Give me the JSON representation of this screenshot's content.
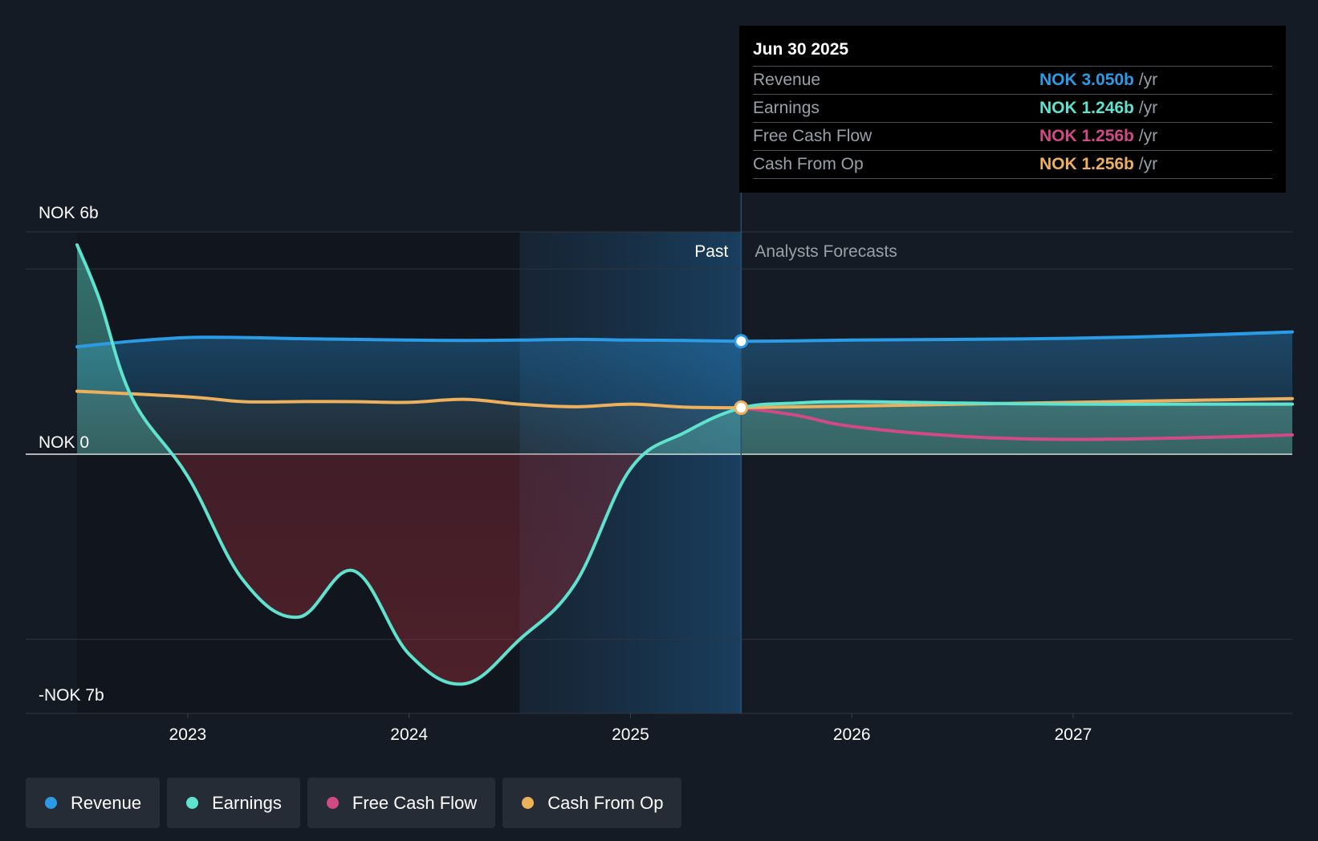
{
  "chart_data": {
    "type": "line",
    "currency": "NOK",
    "x_ticks": [
      {
        "label": "2023",
        "x": 2023.0
      },
      {
        "label": "2024",
        "x": 2024.0
      },
      {
        "label": "2025",
        "x": 2025.0
      },
      {
        "label": "2026",
        "x": 2026.0
      },
      {
        "label": "2027",
        "x": 2027.0
      }
    ],
    "x_range": [
      2022.5,
      2027.99
    ],
    "y_range": [
      -7.0,
      6.0
    ],
    "y_labels": [
      {
        "label": "NOK 6b",
        "value": 6.0
      },
      {
        "label": "NOK 0",
        "value": 0.0
      },
      {
        "label": "-NOK 7b",
        "value": -7.0
      }
    ],
    "gridlines": [
      6.0,
      5.0,
      0.0,
      -5.0,
      -7.0
    ],
    "past_label": "Past",
    "forecast_label": "Analysts Forecasts",
    "shaded_region_start": 2024.5,
    "divider_x": 2025.5,
    "series": [
      {
        "name": "Revenue",
        "color": "#2b9be6",
        "x": [
          2022.5,
          2022.75,
          2023.0,
          2023.25,
          2023.5,
          2023.75,
          2024.0,
          2024.25,
          2024.5,
          2024.75,
          2025.0,
          2025.25,
          2025.5,
          2025.75,
          2026.0,
          2026.5,
          2027.0,
          2027.5,
          2027.99
        ],
        "values": [
          2.9,
          3.05,
          3.15,
          3.15,
          3.12,
          3.1,
          3.08,
          3.07,
          3.08,
          3.1,
          3.08,
          3.07,
          3.05,
          3.06,
          3.08,
          3.1,
          3.13,
          3.2,
          3.3
        ]
      },
      {
        "name": "Earnings",
        "color": "#5fe3cf",
        "x": [
          2022.5,
          2022.6,
          2022.75,
          2023.0,
          2023.25,
          2023.5,
          2023.75,
          2024.0,
          2024.25,
          2024.5,
          2024.75,
          2025.0,
          2025.25,
          2025.5,
          2025.75,
          2026.0,
          2026.5,
          2027.0,
          2027.5,
          2027.99
        ],
        "values": [
          5.65,
          4.2,
          1.5,
          -0.6,
          -3.4,
          -4.4,
          -3.15,
          -5.4,
          -6.2,
          -5.0,
          -3.5,
          -0.4,
          0.6,
          1.246,
          1.38,
          1.42,
          1.38,
          1.35,
          1.35,
          1.35
        ]
      },
      {
        "name": "Free Cash Flow",
        "color": "#d04a86",
        "x": [
          2025.5,
          2025.75,
          2026.0,
          2026.5,
          2027.0,
          2027.5,
          2027.99
        ],
        "values": [
          1.256,
          1.05,
          0.75,
          0.48,
          0.4,
          0.44,
          0.52
        ]
      },
      {
        "name": "Cash From Op",
        "color": "#edb05d",
        "x": [
          2022.5,
          2023.0,
          2023.25,
          2023.5,
          2023.75,
          2024.0,
          2024.25,
          2024.5,
          2024.75,
          2025.0,
          2025.25,
          2025.5,
          2026.0,
          2026.5,
          2027.0,
          2027.5,
          2027.99
        ],
        "values": [
          1.7,
          1.55,
          1.42,
          1.42,
          1.42,
          1.4,
          1.48,
          1.35,
          1.28,
          1.35,
          1.27,
          1.256,
          1.3,
          1.35,
          1.4,
          1.45,
          1.5
        ]
      }
    ],
    "highlight_x": 2025.5,
    "tooltip": {
      "date": "Jun 30 2025",
      "rows": [
        {
          "label": "Revenue",
          "value": "NOK 3.050b",
          "unit": "/yr",
          "color": "#2b9be6"
        },
        {
          "label": "Earnings",
          "value": "NOK 1.246b",
          "unit": "/yr",
          "color": "#5fe3cf"
        },
        {
          "label": "Free Cash Flow",
          "value": "NOK 1.256b",
          "unit": "/yr",
          "color": "#d04a86"
        },
        {
          "label": "Cash From Op",
          "value": "NOK 1.256b",
          "unit": "/yr",
          "color": "#edb05d"
        }
      ]
    }
  },
  "legend": [
    {
      "label": "Revenue",
      "color": "#2b9be6"
    },
    {
      "label": "Earnings",
      "color": "#5fe3cf"
    },
    {
      "label": "Free Cash Flow",
      "color": "#d04a86"
    },
    {
      "label": "Cash From Op",
      "color": "#edb05d"
    }
  ]
}
